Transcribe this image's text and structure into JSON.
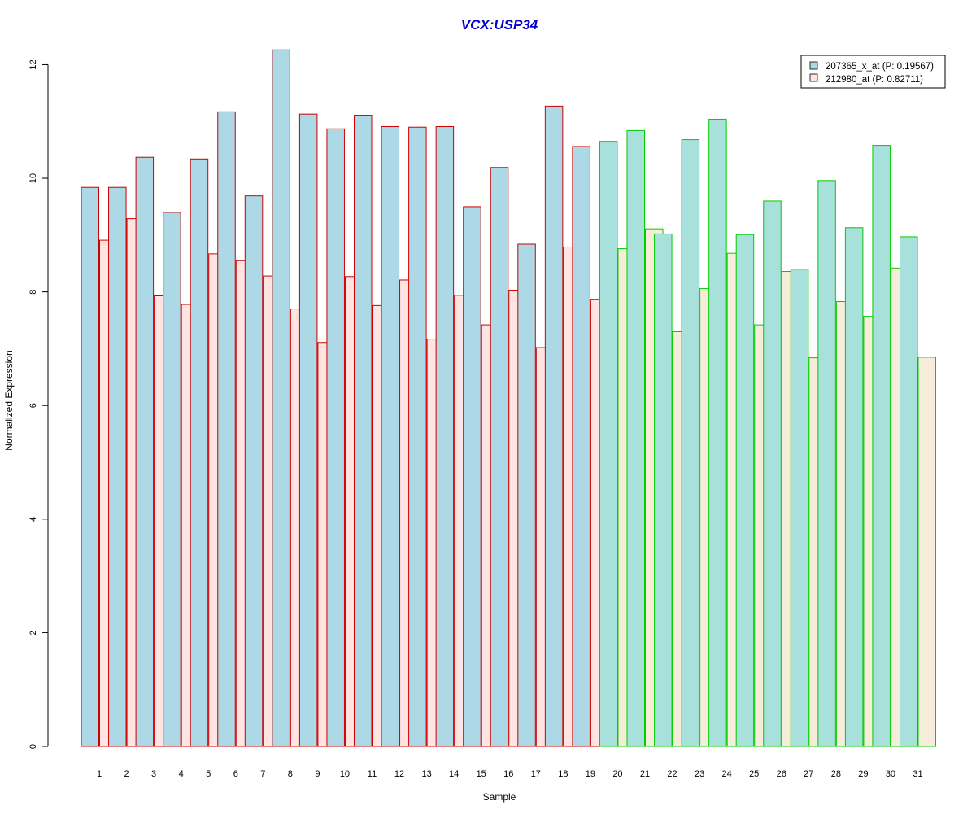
{
  "chart_data": {
    "type": "bar",
    "title": "VCX:USP34",
    "xlabel": "Sample",
    "ylabel": "Normalized Expression",
    "ylim": [
      0,
      12.3
    ],
    "yticks": [
      0,
      2,
      4,
      6,
      8,
      10,
      12
    ],
    "grid": false,
    "legend_position": "top-right",
    "title_color": "#0000cc",
    "categories": [
      "1",
      "2",
      "3",
      "4",
      "5",
      "6",
      "7",
      "8",
      "9",
      "10",
      "11",
      "12",
      "13",
      "14",
      "15",
      "16",
      "17",
      "18",
      "19",
      "20",
      "21",
      "22",
      "23",
      "24",
      "25",
      "26",
      "27",
      "28",
      "29",
      "30",
      "31"
    ],
    "group_border_colors": [
      "#cc0000",
      "#cc0000",
      "#cc0000",
      "#cc0000",
      "#cc0000",
      "#cc0000",
      "#cc0000",
      "#cc0000",
      "#cc0000",
      "#cc0000",
      "#cc0000",
      "#cc0000",
      "#cc0000",
      "#cc0000",
      "#cc0000",
      "#cc0000",
      "#cc0000",
      "#cc0000",
      "#cc0000",
      "#00cc00",
      "#00cc00",
      "#00cc00",
      "#00cc00",
      "#00cc00",
      "#00cc00",
      "#00cc00",
      "#00cc00",
      "#00cc00",
      "#00cc00",
      "#00cc00",
      "#00cc00"
    ],
    "series": [
      {
        "name": "207365_x_at (P: 0.19567)",
        "fill_by_group": {
          "#cc0000": "#add8e6",
          "#00cc00": "#a8e0dc"
        },
        "legend_fill": "#add8e6",
        "values": [
          9.84,
          9.84,
          10.37,
          9.4,
          10.34,
          11.17,
          9.69,
          12.26,
          11.13,
          10.87,
          11.11,
          10.91,
          10.9,
          10.91,
          9.5,
          10.19,
          8.84,
          11.27,
          10.56,
          10.65,
          10.84,
          9.02,
          10.68,
          11.04,
          9.01,
          9.6,
          8.4,
          9.96,
          9.13,
          10.58,
          8.97
        ]
      },
      {
        "name": "212980_at (P: 0.82711)",
        "fill_by_group": {
          "#cc0000": "#ffe4e1",
          "#00cc00": "#f5ecd9"
        },
        "legend_fill": "#ffe4e1",
        "values": [
          8.91,
          9.29,
          7.93,
          7.78,
          8.67,
          8.55,
          8.28,
          7.7,
          7.11,
          8.27,
          7.76,
          8.21,
          7.17,
          7.94,
          7.42,
          8.03,
          7.02,
          8.79,
          7.87,
          8.76,
          9.11,
          7.3,
          8.06,
          8.68,
          7.42,
          8.36,
          6.84,
          7.83,
          7.57,
          8.42,
          6.85
        ]
      }
    ]
  }
}
